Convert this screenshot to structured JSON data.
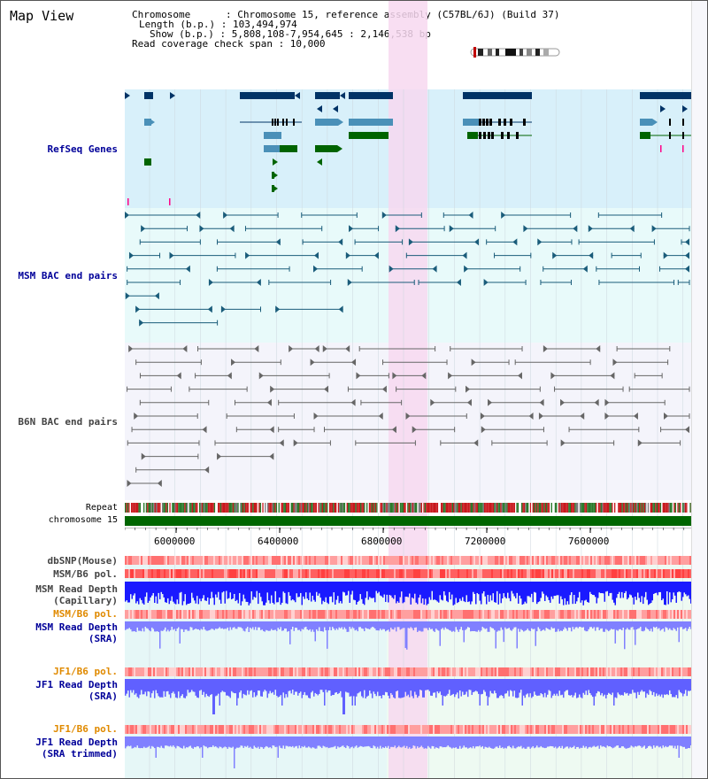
{
  "title": "Map View",
  "info": {
    "chromosome": "Chromosome      : Chromosome 15, reference assembly (C57BL/6J) (Build 37)",
    "length": "Length (b.p.) : 103,494,974",
    "show": "Show (b.p.) : 5,808,108-7,954,645 : 2,146,538 bp",
    "span": "Read coverage check span : 10,000"
  },
  "tracks": {
    "refseq": "RefSeq Genes",
    "msm_bac": "MSM BAC end pairs",
    "b6n_bac": "B6N BAC end pairs",
    "repeat": "Repeat",
    "chrom": "chromosome 15",
    "dbsnp": "dbSNP(Mouse)",
    "msm_b6_pol": "MSM/B6 pol.",
    "msm_depth_cap": "MSM Read Depth",
    "msm_depth_cap_sub": "(Capillary)",
    "msm_b6_pol2": "MSM/B6 pol.",
    "msm_depth_sra": "MSM Read Depth",
    "msm_depth_sra_sub": "(SRA)",
    "jf1_pol": "JF1/B6 pol.",
    "jf1_depth_sra": "JF1 Read Depth",
    "jf1_depth_sra_sub": "(SRA)",
    "jf1_pol2": "JF1/B6 pol.",
    "jf1_depth_trim": "JF1 Read Depth",
    "jf1_depth_trim_sub": "(SRA trimmed)"
  },
  "axis": {
    "ticks": [
      "6000000",
      "6400000",
      "6800000",
      "7200000",
      "7600000"
    ]
  },
  "colors": {
    "refseq_bg": "#d8f0fa",
    "msm_bac_bg": "#e8fafa",
    "b6n_bac_bg": "#f4f4fb",
    "highlight": "#f7d8f0",
    "gene_dark": "#003366",
    "gene_mid": "#4a90b8",
    "gene_green": "#006400",
    "chrom_green": "#006600",
    "label_blue": "#000099",
    "label_orange": "#e08a00",
    "label_gray": "#444444"
  }
}
